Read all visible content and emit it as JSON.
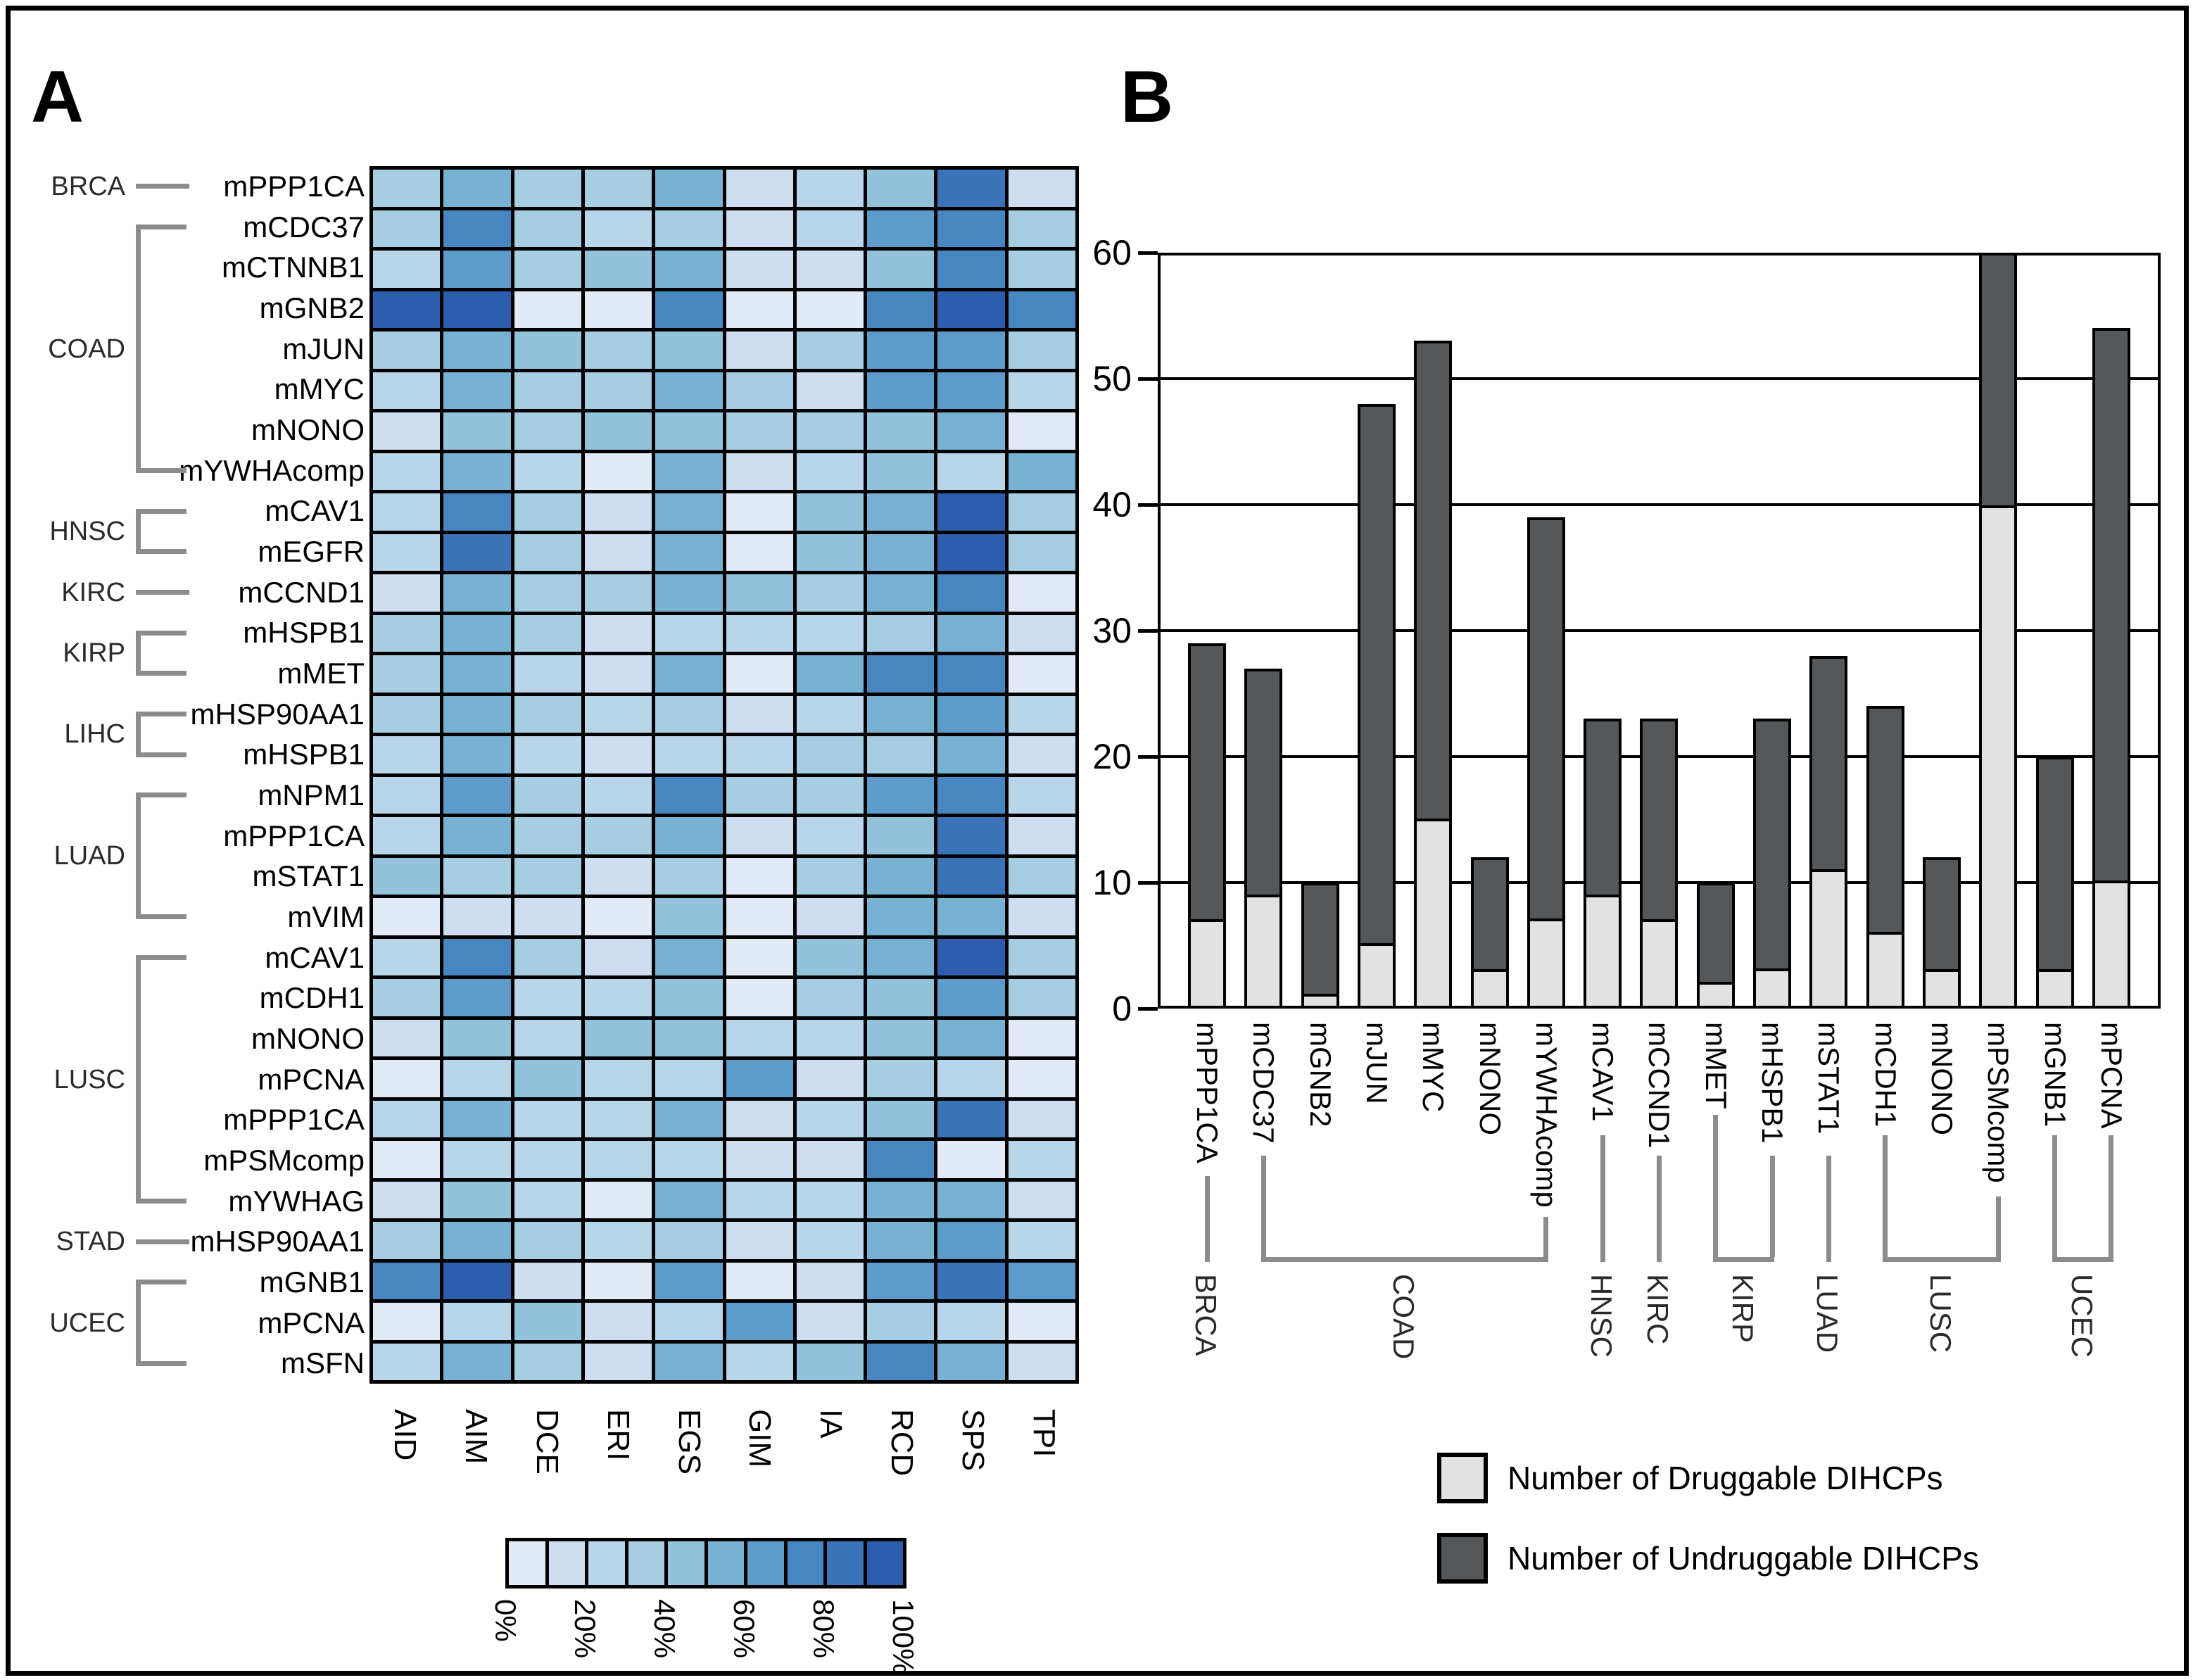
{
  "colors": {
    "heatmap_palette": [
      "#e2eaf6",
      "#cfddf1",
      "#b9d5e9",
      "#a6cde1",
      "#92c3db",
      "#77b2d3",
      "#5c9bca",
      "#4787c1",
      "#3a73b7",
      "#2d5dad"
    ],
    "druggable_fill": "#e2e2e2",
    "undruggable_fill": "#54585a",
    "bracket_gray": "#8c8c8c",
    "frame_black": "#000000"
  },
  "legend": {
    "druggable_label": "Number of Druggable DIHCPs",
    "undruggable_label": "Number of Undruggable DIHCPs"
  },
  "chart_data": [
    {
      "type": "heatmap",
      "panel_label": "A",
      "columns": [
        "AID",
        "AIM",
        "DCE",
        "ERI",
        "EGS",
        "GIM",
        "IA",
        "RCD",
        "SPS",
        "TPI"
      ],
      "value_unit": "percent",
      "rows": [
        {
          "group": "BRCA",
          "gene": "mPPP1CA",
          "values": [
            30,
            55,
            30,
            30,
            55,
            15,
            25,
            45,
            82,
            15
          ]
        },
        {
          "group": "COAD",
          "gene": "mCDC37",
          "values": [
            35,
            70,
            35,
            28,
            38,
            15,
            25,
            62,
            75,
            32
          ]
        },
        {
          "group": "COAD",
          "gene": "mCTNNB1",
          "values": [
            25,
            65,
            38,
            45,
            50,
            18,
            18,
            48,
            72,
            32
          ]
        },
        {
          "group": "COAD",
          "gene": "mGNB2",
          "values": [
            92,
            92,
            5,
            5,
            75,
            5,
            5,
            72,
            92,
            72
          ]
        },
        {
          "group": "COAD",
          "gene": "mJUN",
          "values": [
            35,
            55,
            42,
            38,
            45,
            12,
            35,
            68,
            68,
            38
          ]
        },
        {
          "group": "COAD",
          "gene": "mMYC",
          "values": [
            25,
            50,
            38,
            38,
            55,
            35,
            12,
            68,
            60,
            28
          ]
        },
        {
          "group": "COAD",
          "gene": "mNONO",
          "values": [
            18,
            45,
            32,
            45,
            48,
            32,
            32,
            42,
            55,
            5
          ]
        },
        {
          "group": "COAD",
          "gene": "mYWHAcomp",
          "values": [
            25,
            55,
            25,
            8,
            58,
            15,
            25,
            48,
            22,
            58
          ]
        },
        {
          "group": "HNSC",
          "gene": "mCAV1",
          "values": [
            25,
            72,
            32,
            18,
            52,
            5,
            48,
            55,
            92,
            32
          ]
        },
        {
          "group": "HNSC",
          "gene": "mEGFR",
          "values": [
            28,
            80,
            32,
            15,
            52,
            5,
            48,
            58,
            92,
            32
          ]
        },
        {
          "group": "KIRC",
          "gene": "mCCND1",
          "values": [
            12,
            52,
            38,
            38,
            58,
            40,
            35,
            52,
            72,
            5
          ]
        },
        {
          "group": "KIRP",
          "gene": "mHSPB1",
          "values": [
            35,
            52,
            35,
            18,
            28,
            25,
            28,
            35,
            52,
            15
          ]
        },
        {
          "group": "KIRP",
          "gene": "mMET",
          "values": [
            35,
            55,
            28,
            15,
            52,
            5,
            52,
            78,
            75,
            8
          ]
        },
        {
          "group": "LIHC",
          "gene": "mHSP90AA1",
          "values": [
            35,
            58,
            35,
            25,
            35,
            12,
            25,
            52,
            65,
            28
          ]
        },
        {
          "group": "LIHC",
          "gene": "mHSPB1",
          "values": [
            25,
            52,
            25,
            15,
            28,
            25,
            30,
            38,
            55,
            12
          ]
        },
        {
          "group": "LUAD",
          "gene": "mNPM1",
          "values": [
            28,
            60,
            32,
            25,
            70,
            32,
            30,
            60,
            70,
            25
          ]
        },
        {
          "group": "LUAD",
          "gene": "mPPP1CA",
          "values": [
            28,
            58,
            30,
            30,
            55,
            15,
            28,
            45,
            85,
            15
          ]
        },
        {
          "group": "LUAD",
          "gene": "mSTAT1",
          "values": [
            42,
            38,
            38,
            15,
            38,
            8,
            30,
            58,
            82,
            30
          ]
        },
        {
          "group": "LUAD",
          "gene": "mVIM",
          "values": [
            8,
            15,
            15,
            8,
            40,
            8,
            10,
            58,
            55,
            15
          ]
        },
        {
          "group": "LUSC",
          "gene": "mCAV1",
          "values": [
            28,
            78,
            35,
            15,
            52,
            5,
            48,
            55,
            92,
            32
          ]
        },
        {
          "group": "LUSC",
          "gene": "mCDH1",
          "values": [
            35,
            65,
            28,
            22,
            48,
            8,
            32,
            48,
            68,
            35
          ]
        },
        {
          "group": "LUSC",
          "gene": "mNONO",
          "values": [
            15,
            45,
            28,
            45,
            45,
            25,
            22,
            45,
            55,
            5
          ]
        },
        {
          "group": "LUSC",
          "gene": "mPCNA",
          "values": [
            8,
            22,
            42,
            22,
            28,
            68,
            18,
            35,
            25,
            8
          ]
        },
        {
          "group": "LUSC",
          "gene": "mPPP1CA",
          "values": [
            28,
            58,
            28,
            25,
            55,
            15,
            25,
            48,
            80,
            18
          ]
        },
        {
          "group": "LUSC",
          "gene": "mPSMcomp",
          "values": [
            8,
            28,
            22,
            20,
            28,
            18,
            18,
            78,
            8,
            25
          ]
        },
        {
          "group": "LUSC",
          "gene": "mYWHAG",
          "values": [
            15,
            48,
            28,
            8,
            58,
            20,
            20,
            50,
            55,
            15
          ]
        },
        {
          "group": "STAD",
          "gene": "mHSP90AA1",
          "values": [
            30,
            52,
            32,
            28,
            32,
            15,
            25,
            50,
            65,
            28
          ]
        },
        {
          "group": "UCEC",
          "gene": "mGNB1",
          "values": [
            70,
            90,
            12,
            8,
            65,
            8,
            12,
            60,
            85,
            65
          ]
        },
        {
          "group": "UCEC",
          "gene": "mPCNA",
          "values": [
            8,
            22,
            40,
            15,
            25,
            68,
            15,
            38,
            25,
            8
          ]
        },
        {
          "group": "UCEC",
          "gene": "mSFN",
          "values": [
            25,
            50,
            32,
            15,
            52,
            25,
            42,
            75,
            58,
            15
          ]
        }
      ],
      "row_groups": [
        {
          "name": "BRCA",
          "start": 0,
          "end": 0
        },
        {
          "name": "COAD",
          "start": 1,
          "end": 7
        },
        {
          "name": "HNSC",
          "start": 8,
          "end": 9
        },
        {
          "name": "KIRC",
          "start": 10,
          "end": 10
        },
        {
          "name": "KIRP",
          "start": 11,
          "end": 12
        },
        {
          "name": "LIHC",
          "start": 13,
          "end": 14
        },
        {
          "name": "LUAD",
          "start": 15,
          "end": 18
        },
        {
          "name": "LUSC",
          "start": 19,
          "end": 25
        },
        {
          "name": "STAD",
          "start": 26,
          "end": 26
        },
        {
          "name": "UCEC",
          "start": 27,
          "end": 29
        }
      ],
      "colorbar_tick_labels": [
        "0%",
        "20%",
        "40%",
        "60%",
        "80%",
        "100%"
      ],
      "legend_position": "below"
    },
    {
      "type": "bar",
      "stacked": true,
      "panel_label": "B",
      "categories": [
        "mPPP1CA",
        "mCDC37",
        "mGNB2",
        "mJUN",
        "mMYC",
        "mNONO",
        "mYWHAcomp",
        "mCAV1",
        "mCCND1",
        "mMET",
        "mHSPB1",
        "mSTAT1",
        "mCDH1",
        "mNONO",
        "mPSMcomp",
        "mGNB1",
        "mPCNA"
      ],
      "series": [
        {
          "name": "Number of Druggable DIHCPs",
          "values": [
            7,
            9,
            1,
            5,
            15,
            3,
            7,
            9,
            7,
            2,
            3,
            11,
            6,
            3,
            40,
            3,
            10
          ]
        },
        {
          "name": "Number of Undruggable DIHCPs",
          "values": [
            22,
            18,
            9,
            43,
            38,
            9,
            32,
            14,
            16,
            8,
            20,
            17,
            18,
            9,
            20,
            17,
            44
          ]
        }
      ],
      "totals": [
        29,
        27,
        10,
        48,
        53,
        12,
        39,
        23,
        23,
        10,
        23,
        28,
        24,
        12,
        60,
        20,
        54
      ],
      "category_groups": [
        {
          "name": "BRCA",
          "start": 0,
          "end": 0
        },
        {
          "name": "COAD",
          "start": 1,
          "end": 6
        },
        {
          "name": "HNSC",
          "start": 7,
          "end": 7
        },
        {
          "name": "KIRC",
          "start": 8,
          "end": 8
        },
        {
          "name": "KIRP",
          "start": 9,
          "end": 10
        },
        {
          "name": "LUAD",
          "start": 11,
          "end": 11
        },
        {
          "name": "LUSC",
          "start": 12,
          "end": 14
        },
        {
          "name": "UCEC",
          "start": 15,
          "end": 16
        }
      ],
      "title": "",
      "xlabel": "",
      "ylabel": "",
      "ylim": [
        0,
        60
      ],
      "yticks": [
        0,
        10,
        20,
        30,
        40,
        50,
        60
      ],
      "grid": true,
      "legend_position": "bottom-right"
    }
  ]
}
